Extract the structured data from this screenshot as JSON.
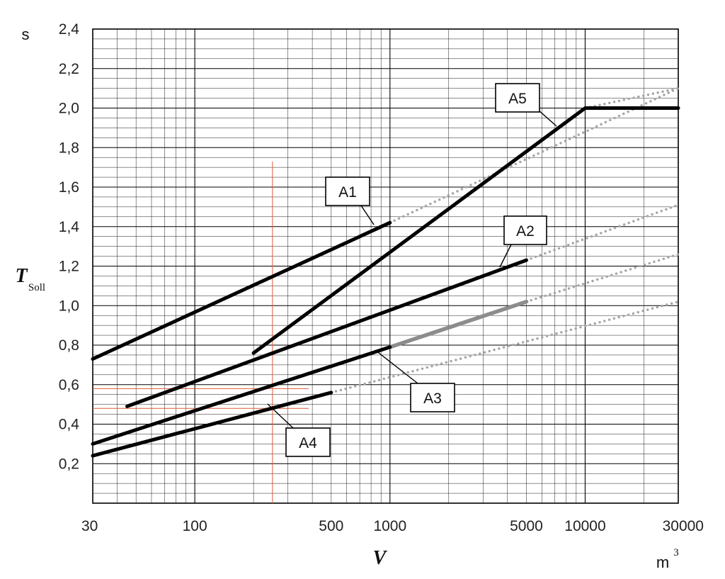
{
  "chart_data": {
    "type": "line",
    "x_scale": "log",
    "xlim": [
      30,
      30000
    ],
    "ylim": [
      0,
      2.4
    ],
    "grid": true,
    "x_ticks": [
      "30",
      "100",
      "500",
      "1000",
      "5000",
      "10000",
      "30000"
    ],
    "y_ticks": [
      "0,2",
      "0,4",
      "0,6",
      "0,8",
      "1,0",
      "1,2",
      "1,4",
      "1,6",
      "1,8",
      "2,0",
      "2,2",
      "2,4"
    ],
    "xlabel": "V",
    "xunit": "m",
    "xunit_exp": "3",
    "ylabel": "T",
    "ylabel_sub": "Soll",
    "yunit": "s",
    "series": [
      {
        "name": "A1",
        "solid": {
          "x": [
            30,
            1000
          ],
          "y": [
            0.73,
            1.42
          ]
        },
        "dotted": {
          "x": [
            1000,
            30000
          ],
          "y": [
            1.42,
            2.1
          ]
        }
      },
      {
        "name": "A2",
        "solid": {
          "x": [
            45,
            5000
          ],
          "y": [
            0.49,
            1.23
          ]
        },
        "dotted": {
          "x": [
            5000,
            30000
          ],
          "y": [
            1.23,
            1.51
          ]
        }
      },
      {
        "name": "A3",
        "solid": {
          "x": [
            30,
            1000
          ],
          "y": [
            0.3,
            0.79
          ]
        },
        "solid_gray": {
          "x": [
            1000,
            5000
          ],
          "y": [
            0.79,
            1.02
          ]
        },
        "dotted": {
          "x": [
            5000,
            30000
          ],
          "y": [
            1.02,
            1.26
          ]
        }
      },
      {
        "name": "A4",
        "solid": {
          "x": [
            30,
            500
          ],
          "y": [
            0.24,
            0.56
          ]
        },
        "dotted": {
          "x": [
            500,
            30000
          ],
          "y": [
            0.56,
            1.02
          ]
        }
      },
      {
        "name": "A5",
        "solid": {
          "x": [
            200,
            10000,
            30000
          ],
          "y": [
            0.76,
            2.0,
            2.0
          ]
        },
        "dotted": {
          "x": [
            10000,
            30000
          ],
          "y": [
            2.0,
            2.1
          ]
        }
      }
    ],
    "reference_lines": {
      "x": 250,
      "y_values": [
        0.58,
        0.48
      ]
    },
    "colors": {
      "line": "#000000",
      "gray_segment": "#8c8c8c",
      "dotted": "#a6a6a6",
      "reference": "#e05a3a",
      "grid": "#000000"
    }
  }
}
